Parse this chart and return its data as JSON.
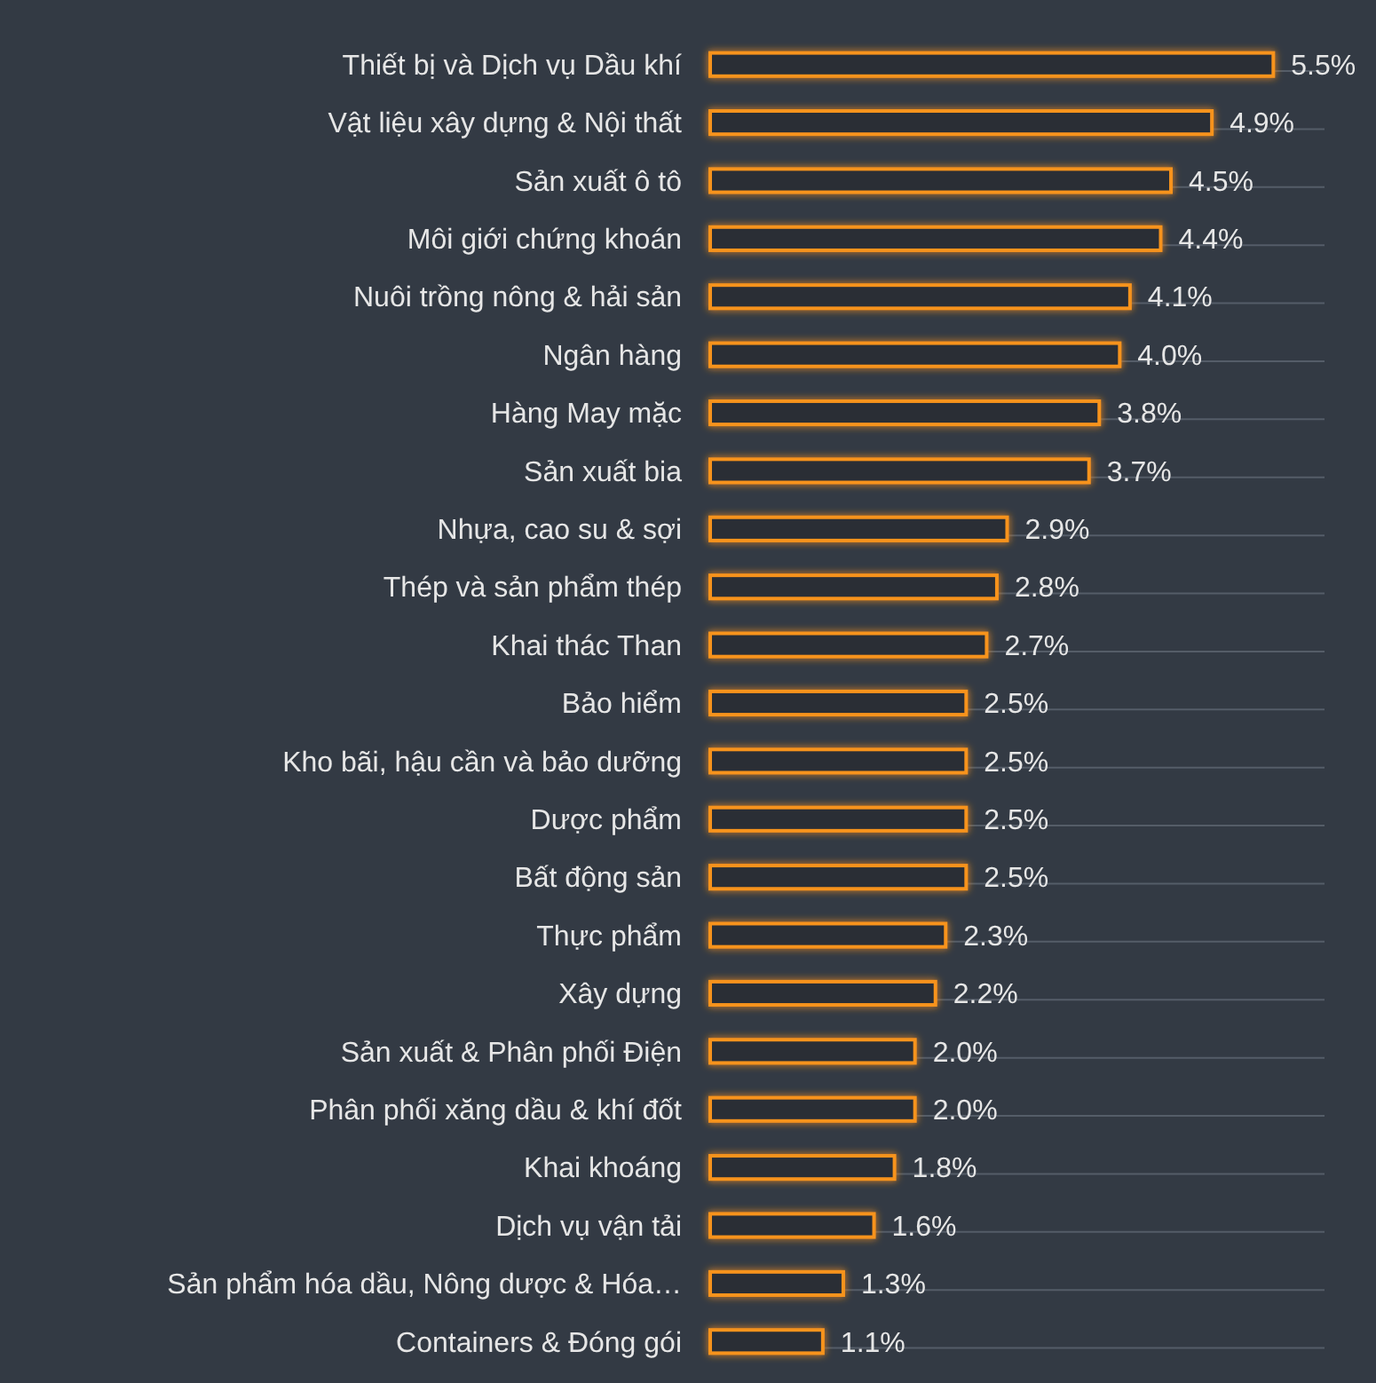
{
  "chart_data": {
    "type": "bar",
    "orientation": "horizontal",
    "color": "#f7931e",
    "categories": [
      "Thiết bị và Dịch vụ Dầu khí",
      "Vật liệu xây dựng & Nội thất",
      "Sản xuất ô tô",
      "Môi giới chứng khoán",
      "Nuôi trồng nông & hải sản",
      "Ngân hàng",
      "Hàng May mặc",
      "Sản xuất bia",
      "Nhựa, cao su & sợi",
      "Thép và sản phẩm thép",
      "Khai thác Than",
      "Bảo hiểm",
      "Kho bãi, hậu cần và bảo dưỡng",
      "Dược phẩm",
      "Bất động sản",
      "Thực phẩm",
      "Xây dựng",
      "Sản xuất & Phân phối Điện",
      "Phân phối xăng dầu & khí đốt",
      "Khai khoáng",
      "Dịch vụ vận tải",
      "Sản phẩm hóa dầu, Nông dược & Hóa…",
      "Containers & Đóng gói"
    ],
    "values": [
      5.5,
      4.9,
      4.5,
      4.4,
      4.1,
      4.0,
      3.8,
      3.7,
      2.9,
      2.8,
      2.7,
      2.5,
      2.5,
      2.5,
      2.5,
      2.3,
      2.2,
      2.0,
      2.0,
      1.8,
      1.6,
      1.3,
      1.1
    ],
    "value_labels": [
      "5.5%",
      "4.9%",
      "4.5%",
      "4.4%",
      "4.1%",
      "4.0%",
      "3.8%",
      "3.7%",
      "2.9%",
      "2.8%",
      "2.7%",
      "2.5%",
      "2.5%",
      "2.5%",
      "2.5%",
      "2.3%",
      "2.2%",
      "2.0%",
      "2.0%",
      "1.8%",
      "1.6%",
      "1.3%",
      "1.1%"
    ],
    "xlim": [
      0,
      6
    ],
    "grid": "y",
    "tick_labels": "y"
  }
}
